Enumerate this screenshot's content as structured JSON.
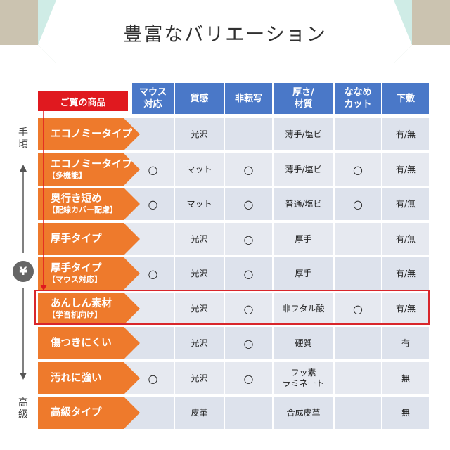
{
  "title": "豊富なバリエーション",
  "colors": {
    "banner_teal": "#cfece6",
    "banner_tan": "#cbc3b0",
    "header_blue": "#4a78c8",
    "label_orange": "#ee7a2c",
    "highlight_red": "#d9262b"
  },
  "badge_label": "ご覧の商品",
  "side_axis": {
    "top_label": "手頃",
    "yen_icon": "¥",
    "bottom_label": "高級"
  },
  "columns": [
    "マウス\n対応",
    "質感",
    "非転写",
    "厚さ/\n材質",
    "ななめ\nカット",
    "下敷"
  ],
  "rows": [
    {
      "label": "エコノミータイプ",
      "sub": "",
      "cells": [
        "",
        "光沢",
        "",
        "薄手/塩ビ",
        "",
        "有/無"
      ]
    },
    {
      "label": "エコノミータイプ",
      "sub": "【多機能】",
      "cells": [
        "○",
        "マット",
        "○",
        "薄手/塩ビ",
        "○",
        "有/無"
      ]
    },
    {
      "label": "奥行き短め",
      "sub": "【配線カバー配慮】",
      "cells": [
        "○",
        "マット",
        "○",
        "普通/塩ビ",
        "○",
        "有/無"
      ]
    },
    {
      "label": "厚手タイプ",
      "sub": "",
      "cells": [
        "",
        "光沢",
        "○",
        "厚手",
        "",
        "有/無"
      ]
    },
    {
      "label": "厚手タイプ",
      "sub": "【マウス対応】",
      "cells": [
        "○",
        "光沢",
        "○",
        "厚手",
        "",
        "有/無"
      ]
    },
    {
      "label": "あんしん素材",
      "sub": "【学習机向け】",
      "cells": [
        "",
        "光沢",
        "○",
        "非フタル酸",
        "○",
        "有/無"
      ]
    },
    {
      "label": "傷つきにくい",
      "sub": "",
      "cells": [
        "",
        "光沢",
        "○",
        "硬質",
        "",
        "有"
      ]
    },
    {
      "label": "汚れに強い",
      "sub": "",
      "cells": [
        "○",
        "光沢",
        "○",
        "フッ素\nラミネート",
        "",
        "無"
      ]
    },
    {
      "label": "高級タイプ",
      "sub": "",
      "cells": [
        "",
        "皮革",
        "",
        "合成皮革",
        "",
        "無"
      ]
    }
  ]
}
